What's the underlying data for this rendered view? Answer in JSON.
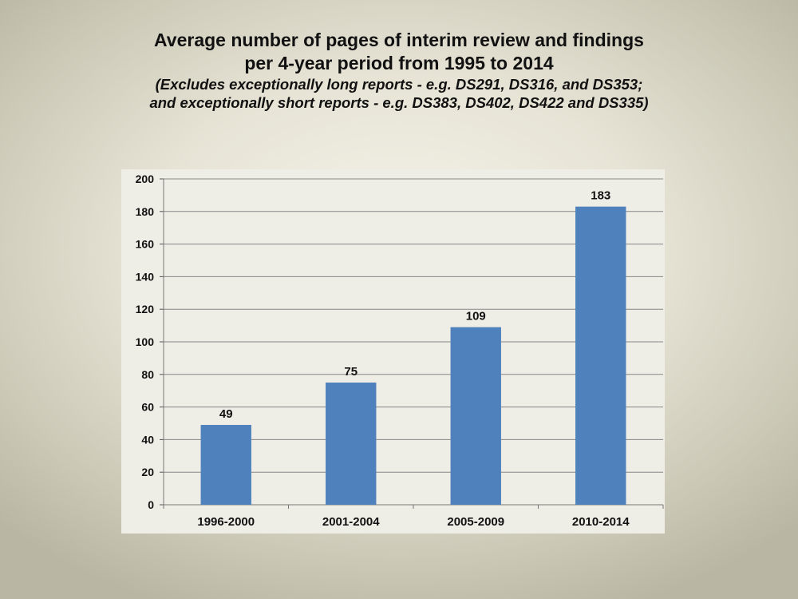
{
  "title": {
    "line1": "Average number of pages of interim review and findings",
    "line2": "per 4-year period from 1995 to 2014",
    "subtitle1": "(Excludes exceptionally long reports - e.g. DS291, DS316, and DS353;",
    "subtitle2": "and exceptionally  short reports - e.g. DS383, DS402, DS422 and DS335)"
  },
  "chart_data": {
    "type": "bar",
    "categories": [
      "1996-2000",
      "2001-2004",
      "2005-2009",
      "2010-2014"
    ],
    "values": [
      49,
      75,
      109,
      183
    ],
    "data_labels": [
      "49",
      "75",
      "109",
      "183"
    ],
    "title": "Average number of pages of interim review and findings per 4-year period from 1995 to 2014",
    "subtitle": "(Excludes exceptionally long reports - e.g. DS291, DS316, and DS353; and exceptionally  short reports - e.g. DS383, DS402, DS422 and DS335)",
    "xlabel": "",
    "ylabel": "",
    "ylim": [
      0,
      200
    ],
    "yticks": [
      0,
      20,
      40,
      60,
      80,
      100,
      120,
      140,
      160,
      180,
      200
    ],
    "grid": true,
    "legend": "none",
    "bar_color": "#4f81bd",
    "gridline_color": "#868686"
  }
}
